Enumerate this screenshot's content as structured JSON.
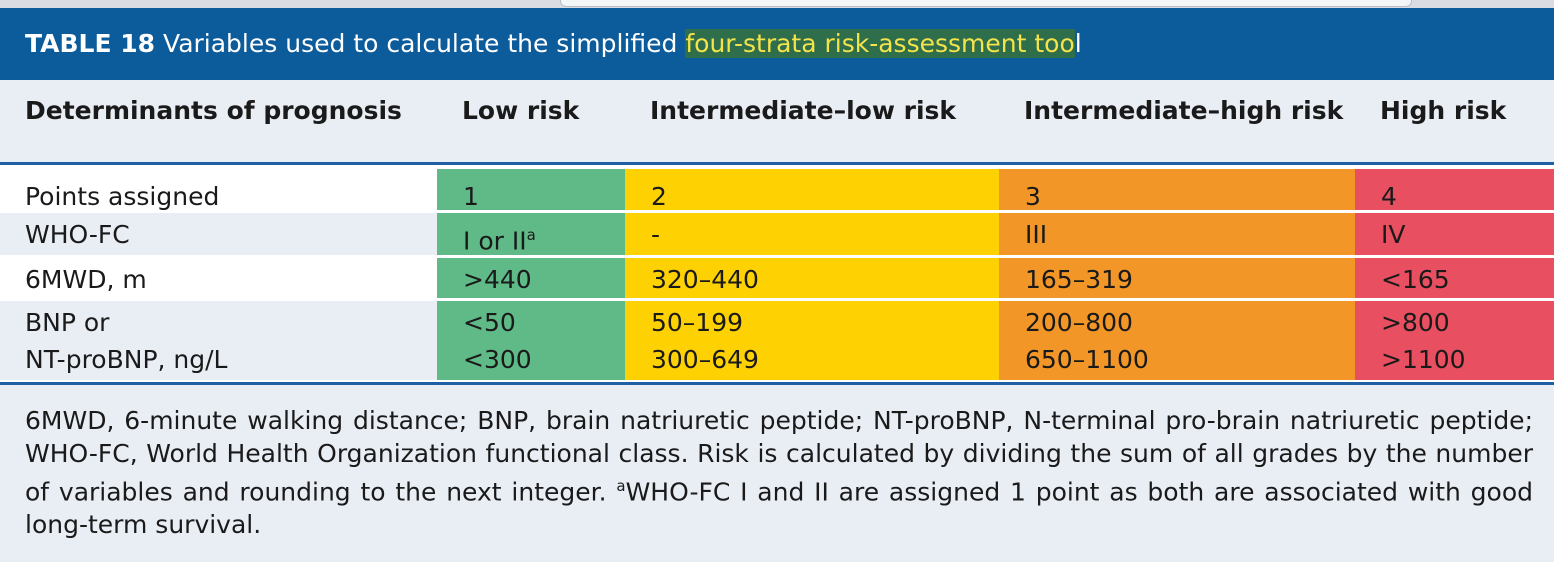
{
  "header": {
    "label": "TABLE 18",
    "title": "Variables used to calculate the simplified ",
    "highlight": "four-strata risk-assessment too",
    "title_end": "l"
  },
  "table": {
    "columns": [
      "Determinants of prognosis",
      "Low risk",
      "Intermediate–low risk",
      "Intermediate–high risk",
      "High risk"
    ],
    "rows": [
      [
        "Points assigned",
        "1",
        "2",
        "3",
        "4"
      ],
      [
        "WHO-FC",
        {
          "text": "I or II",
          "sup": "a"
        },
        "-",
        "III",
        "IV"
      ],
      [
        "6MWD, m",
        ">440",
        "320–440",
        "165–319",
        "<165"
      ],
      [
        "BNP or",
        "<50",
        "50–199",
        "200–800",
        ">800"
      ],
      [
        "NT-proBNP, ng/L",
        "<300",
        "300–649",
        "650–1100",
        ">1100"
      ]
    ]
  },
  "footnote": {
    "text": "6MWD, 6-minute walking distance; BNP, brain natriuretic peptide; NT-proBNP, N-terminal pro-brain natriuretic peptide; WHO-FC, World Health Organization functional class. Risk is calculated by dividing the sum of all grades by the number of variables and rounding to the next integer. ",
    "sup": "a",
    "text_end": "WHO-FC I and II are assigned 1 point as both are associated with good long-term survival."
  }
}
